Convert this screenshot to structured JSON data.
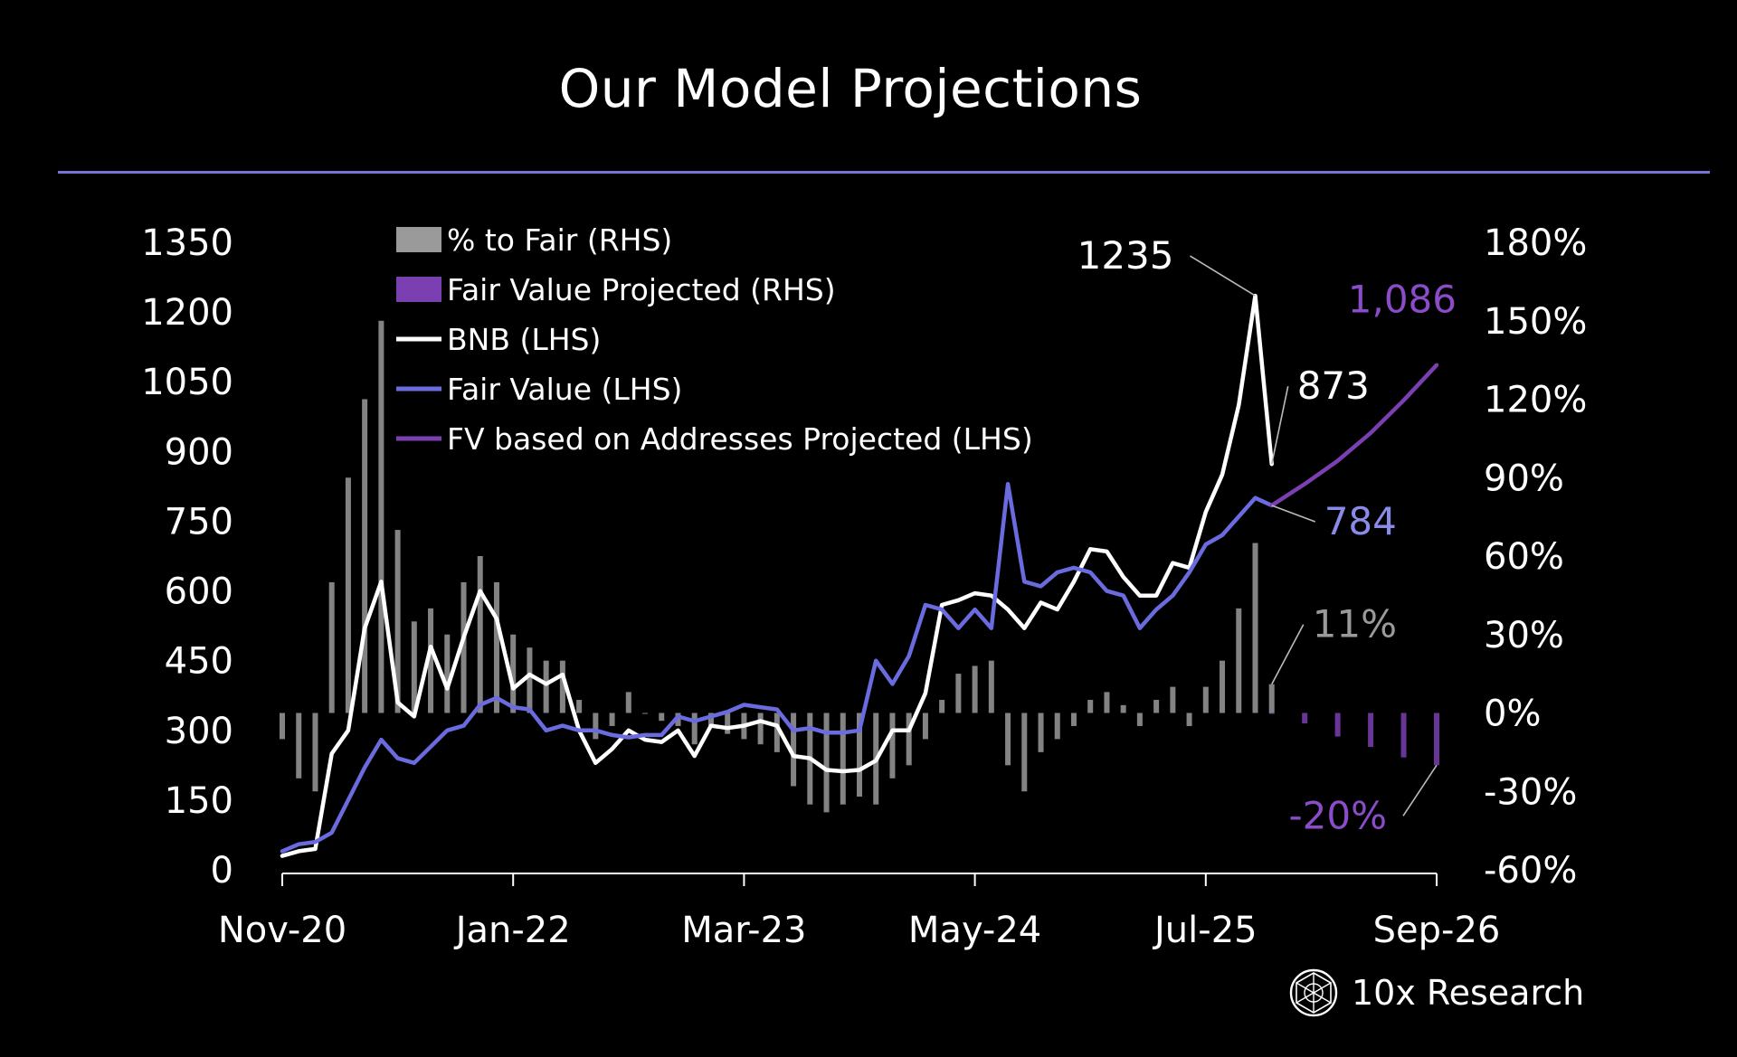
{
  "title": "Our Model Projections",
  "brand": {
    "name": "10x Research",
    "icon": "logo-icon"
  },
  "colors": {
    "background": "#000000",
    "rule": "#7672d6",
    "bars": "#9a9a9a",
    "projected_bars": "#7a3fb0",
    "bnb": "#ffffff",
    "fair_value": "#6b6be0",
    "fv_projected": "#7a3fb0",
    "label_fair_value": "#8a8ae8",
    "label_projected": "#8a4cc8",
    "label_bars": "#9a9a9a"
  },
  "chart_data": {
    "type": "line",
    "title": "Our Model Projections",
    "x_axis": {
      "ticks": [
        "Nov-20",
        "Jan-22",
        "Mar-23",
        "May-24",
        "Jul-25",
        "Sep-26"
      ],
      "range": [
        "2020-11",
        "2026-09"
      ]
    },
    "y_left": {
      "ticks": [
        "0",
        "150",
        "300",
        "450",
        "600",
        "750",
        "900",
        "1050",
        "1200",
        "1350"
      ],
      "range": [
        0,
        1350
      ]
    },
    "y_right": {
      "ticks": [
        "-60%",
        "-30%",
        "0%",
        "30%",
        "60%",
        "90%",
        "120%",
        "150%",
        "180%"
      ],
      "range": [
        -60,
        180
      ]
    },
    "legend": [
      {
        "label": "% to Fair (RHS)",
        "kind": "bar",
        "color": "#9a9a9a"
      },
      {
        "label": "Fair Value Projected (RHS)",
        "kind": "bar",
        "color": "#7a3fb0"
      },
      {
        "label": "BNB (LHS)",
        "kind": "line",
        "color": "#ffffff"
      },
      {
        "label": "Fair Value (LHS)",
        "kind": "line",
        "color": "#6b6be0"
      },
      {
        "label": "FV based on Addresses Projected (LHS)",
        "kind": "line",
        "color": "#7a3fb0"
      }
    ],
    "annotations": [
      {
        "text": "1235",
        "series": "BNB (LHS)",
        "x": "2025-10",
        "y": 1235
      },
      {
        "text": "873",
        "series": "BNB (LHS)",
        "x": "2025-11",
        "y": 873
      },
      {
        "text": "784",
        "series": "Fair Value (LHS)",
        "x": "2025-11",
        "y": 784
      },
      {
        "text": "1,086",
        "series": "FV based on Addresses Projected (LHS)",
        "x": "2026-09",
        "y": 1086
      },
      {
        "text": "11%",
        "series": "% to Fair (RHS)",
        "x": "2025-11",
        "y": 11
      },
      {
        "text": "-20%",
        "series": "Fair Value Projected (RHS)",
        "x": "2026-09",
        "y": -20
      }
    ],
    "series": [
      {
        "name": "BNB (LHS)",
        "axis": "left",
        "style": "line",
        "points": [
          [
            "2020-11",
            30
          ],
          [
            "2020-12",
            40
          ],
          [
            "2021-01",
            45
          ],
          [
            "2021-02",
            250
          ],
          [
            "2021-03",
            300
          ],
          [
            "2021-04",
            520
          ],
          [
            "2021-05",
            620
          ],
          [
            "2021-06",
            360
          ],
          [
            "2021-07",
            330
          ],
          [
            "2021-08",
            480
          ],
          [
            "2021-09",
            390
          ],
          [
            "2021-10",
            500
          ],
          [
            "2021-11",
            600
          ],
          [
            "2021-12",
            540
          ],
          [
            "2022-01",
            390
          ],
          [
            "2022-02",
            420
          ],
          [
            "2022-03",
            400
          ],
          [
            "2022-04",
            420
          ],
          [
            "2022-05",
            300
          ],
          [
            "2022-06",
            230
          ],
          [
            "2022-07",
            260
          ],
          [
            "2022-08",
            300
          ],
          [
            "2022-09",
            280
          ],
          [
            "2022-10",
            275
          ],
          [
            "2022-11",
            300
          ],
          [
            "2022-12",
            245
          ],
          [
            "2023-01",
            310
          ],
          [
            "2023-02",
            305
          ],
          [
            "2023-03",
            310
          ],
          [
            "2023-04",
            320
          ],
          [
            "2023-05",
            310
          ],
          [
            "2023-06",
            245
          ],
          [
            "2023-07",
            240
          ],
          [
            "2023-08",
            215
          ],
          [
            "2023-09",
            212
          ],
          [
            "2023-10",
            215
          ],
          [
            "2023-11",
            235
          ],
          [
            "2023-12",
            300
          ],
          [
            "2024-01",
            300
          ],
          [
            "2024-02",
            380
          ],
          [
            "2024-03",
            570
          ],
          [
            "2024-04",
            580
          ],
          [
            "2024-05",
            595
          ],
          [
            "2024-06",
            590
          ],
          [
            "2024-07",
            560
          ],
          [
            "2024-08",
            520
          ],
          [
            "2024-09",
            575
          ],
          [
            "2024-10",
            560
          ],
          [
            "2024-11",
            620
          ],
          [
            "2024-12",
            690
          ],
          [
            "2025-01",
            685
          ],
          [
            "2025-02",
            630
          ],
          [
            "2025-03",
            590
          ],
          [
            "2025-04",
            590
          ],
          [
            "2025-05",
            660
          ],
          [
            "2025-06",
            650
          ],
          [
            "2025-07",
            770
          ],
          [
            "2025-08",
            850
          ],
          [
            "2025-09",
            1000
          ],
          [
            "2025-10",
            1235
          ],
          [
            "2025-11",
            873
          ]
        ]
      },
      {
        "name": "Fair Value (LHS)",
        "axis": "left",
        "style": "line",
        "points": [
          [
            "2020-11",
            40
          ],
          [
            "2020-12",
            55
          ],
          [
            "2021-01",
            60
          ],
          [
            "2021-02",
            80
          ],
          [
            "2021-03",
            150
          ],
          [
            "2021-04",
            220
          ],
          [
            "2021-05",
            280
          ],
          [
            "2021-06",
            240
          ],
          [
            "2021-07",
            230
          ],
          [
            "2021-08",
            265
          ],
          [
            "2021-09",
            300
          ],
          [
            "2021-10",
            310
          ],
          [
            "2021-11",
            355
          ],
          [
            "2021-12",
            370
          ],
          [
            "2022-01",
            350
          ],
          [
            "2022-02",
            345
          ],
          [
            "2022-03",
            300
          ],
          [
            "2022-04",
            310
          ],
          [
            "2022-05",
            300
          ],
          [
            "2022-06",
            300
          ],
          [
            "2022-07",
            290
          ],
          [
            "2022-08",
            285
          ],
          [
            "2022-09",
            290
          ],
          [
            "2022-10",
            290
          ],
          [
            "2022-11",
            330
          ],
          [
            "2022-12",
            320
          ],
          [
            "2023-01",
            330
          ],
          [
            "2023-02",
            340
          ],
          [
            "2023-03",
            355
          ],
          [
            "2023-04",
            350
          ],
          [
            "2023-05",
            345
          ],
          [
            "2023-06",
            300
          ],
          [
            "2023-07",
            305
          ],
          [
            "2023-08",
            295
          ],
          [
            "2023-09",
            295
          ],
          [
            "2023-10",
            300
          ],
          [
            "2023-11",
            450
          ],
          [
            "2023-12",
            400
          ],
          [
            "2024-01",
            460
          ],
          [
            "2024-02",
            570
          ],
          [
            "2024-03",
            560
          ],
          [
            "2024-04",
            520
          ],
          [
            "2024-05",
            560
          ],
          [
            "2024-06",
            520
          ],
          [
            "2024-07",
            830
          ],
          [
            "2024-08",
            620
          ],
          [
            "2024-09",
            610
          ],
          [
            "2024-10",
            640
          ],
          [
            "2024-11",
            650
          ],
          [
            "2024-12",
            640
          ],
          [
            "2025-01",
            600
          ],
          [
            "2025-02",
            590
          ],
          [
            "2025-03",
            520
          ],
          [
            "2025-04",
            560
          ],
          [
            "2025-05",
            590
          ],
          [
            "2025-06",
            640
          ],
          [
            "2025-07",
            700
          ],
          [
            "2025-08",
            720
          ],
          [
            "2025-09",
            760
          ],
          [
            "2025-10",
            800
          ],
          [
            "2025-11",
            784
          ]
        ]
      },
      {
        "name": "FV based on Addresses Projected (LHS)",
        "axis": "left",
        "style": "line",
        "points": [
          [
            "2025-11",
            784
          ],
          [
            "2026-01",
            830
          ],
          [
            "2026-03",
            880
          ],
          [
            "2026-05",
            940
          ],
          [
            "2026-07",
            1010
          ],
          [
            "2026-09",
            1086
          ]
        ]
      },
      {
        "name": "% to Fair (RHS)",
        "axis": "right",
        "style": "bar",
        "points": [
          [
            "2020-11",
            -10
          ],
          [
            "2020-12",
            -25
          ],
          [
            "2021-01",
            -30
          ],
          [
            "2021-02",
            50
          ],
          [
            "2021-03",
            90
          ],
          [
            "2021-04",
            120
          ],
          [
            "2021-05",
            150
          ],
          [
            "2021-06",
            70
          ],
          [
            "2021-07",
            35
          ],
          [
            "2021-08",
            40
          ],
          [
            "2021-09",
            30
          ],
          [
            "2021-10",
            50
          ],
          [
            "2021-11",
            60
          ],
          [
            "2021-12",
            50
          ],
          [
            "2022-01",
            30
          ],
          [
            "2022-02",
            25
          ],
          [
            "2022-03",
            20
          ],
          [
            "2022-04",
            20
          ],
          [
            "2022-05",
            5
          ],
          [
            "2022-06",
            -10
          ],
          [
            "2022-07",
            -5
          ],
          [
            "2022-08",
            8
          ],
          [
            "2022-09",
            0
          ],
          [
            "2022-10",
            -3
          ],
          [
            "2022-11",
            -5
          ],
          [
            "2022-12",
            -12
          ],
          [
            "2023-01",
            -5
          ],
          [
            "2023-02",
            -8
          ],
          [
            "2023-03",
            -10
          ],
          [
            "2023-04",
            -12
          ],
          [
            "2023-05",
            -15
          ],
          [
            "2023-06",
            -28
          ],
          [
            "2023-07",
            -35
          ],
          [
            "2023-08",
            -38
          ],
          [
            "2023-09",
            -35
          ],
          [
            "2023-10",
            -32
          ],
          [
            "2023-11",
            -35
          ],
          [
            "2023-12",
            -25
          ],
          [
            "2024-01",
            -20
          ],
          [
            "2024-02",
            -10
          ],
          [
            "2024-03",
            5
          ],
          [
            "2024-04",
            15
          ],
          [
            "2024-05",
            18
          ],
          [
            "2024-06",
            20
          ],
          [
            "2024-07",
            -20
          ],
          [
            "2024-08",
            -30
          ],
          [
            "2024-09",
            -15
          ],
          [
            "2024-10",
            -10
          ],
          [
            "2024-11",
            -5
          ],
          [
            "2024-12",
            5
          ],
          [
            "2025-01",
            8
          ],
          [
            "2025-02",
            3
          ],
          [
            "2025-03",
            -5
          ],
          [
            "2025-04",
            5
          ],
          [
            "2025-05",
            10
          ],
          [
            "2025-06",
            -5
          ],
          [
            "2025-07",
            10
          ],
          [
            "2025-08",
            20
          ],
          [
            "2025-09",
            40
          ],
          [
            "2025-10",
            65
          ],
          [
            "2025-11",
            11
          ]
        ]
      },
      {
        "name": "Fair Value Projected (RHS)",
        "axis": "right",
        "style": "bar",
        "points": [
          [
            "2025-11",
            0
          ],
          [
            "2026-01",
            -4
          ],
          [
            "2026-03",
            -9
          ],
          [
            "2026-05",
            -13
          ],
          [
            "2026-07",
            -17
          ],
          [
            "2026-09",
            -20
          ]
        ]
      }
    ]
  }
}
